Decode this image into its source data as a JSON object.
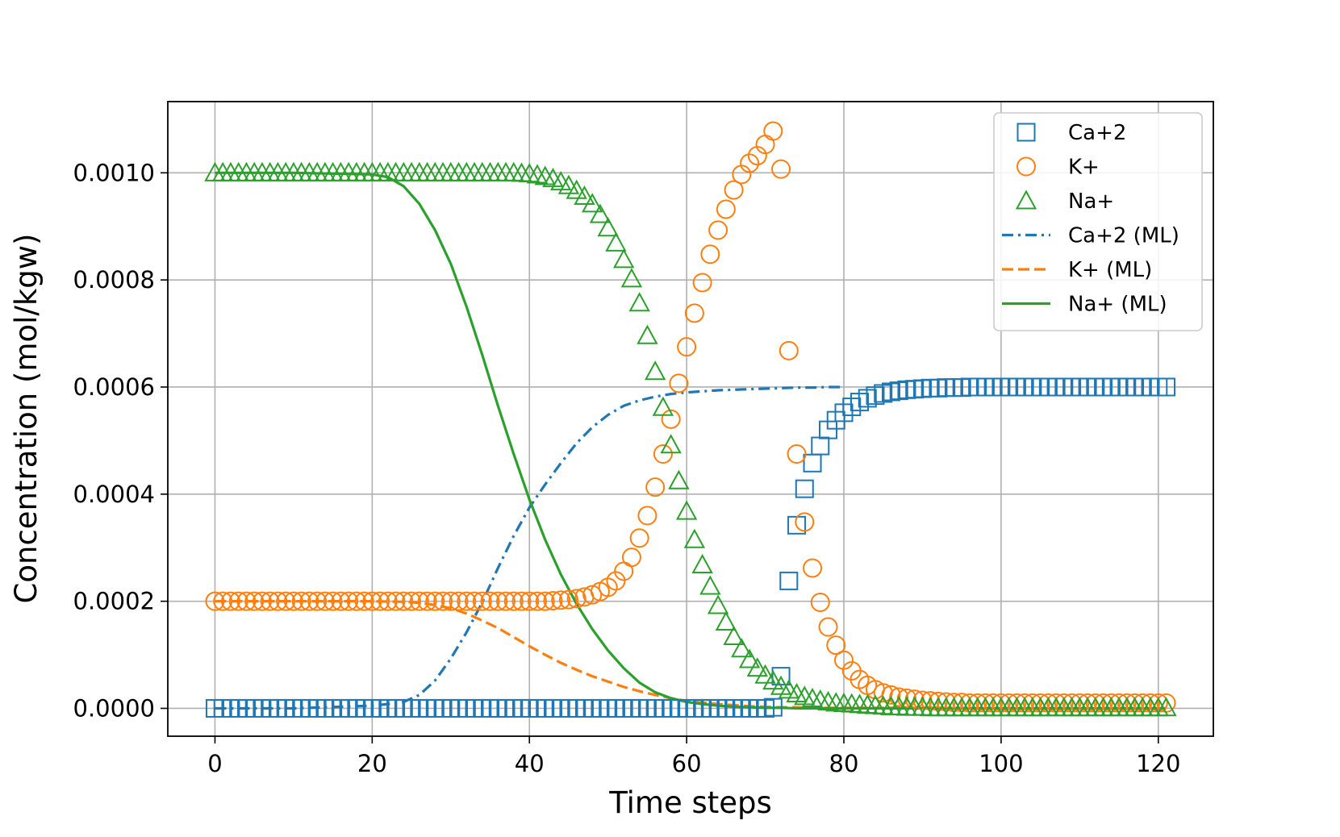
{
  "chart_data": {
    "type": "scatter",
    "xlabel": "Time steps",
    "ylabel": "Concentration (mol/kgw)",
    "xlim": [
      -6,
      127
    ],
    "ylim": [
      -5.2e-05,
      0.001133
    ],
    "xticks": [
      0,
      20,
      40,
      60,
      80,
      100,
      120
    ],
    "xtick_labels": [
      "0",
      "20",
      "40",
      "60",
      "80",
      "100",
      "120"
    ],
    "yticks": [
      0,
      0.0002,
      0.0004,
      0.0006,
      0.0008,
      0.001
    ],
    "ytick_labels": [
      "0.0000",
      "0.0002",
      "0.0004",
      "0.0006",
      "0.0008",
      "0.0010"
    ],
    "grid": true,
    "legend_position": "top-right",
    "series": [
      {
        "name": "Ca+2",
        "style": "markers",
        "marker": "square",
        "color": "#1f77b4",
        "x": [
          0,
          1,
          2,
          3,
          4,
          5,
          6,
          7,
          8,
          9,
          10,
          11,
          12,
          13,
          14,
          15,
          16,
          17,
          18,
          19,
          20,
          21,
          22,
          23,
          24,
          25,
          26,
          27,
          28,
          29,
          30,
          31,
          32,
          33,
          34,
          35,
          36,
          37,
          38,
          39,
          40,
          41,
          42,
          43,
          44,
          45,
          46,
          47,
          48,
          49,
          50,
          51,
          52,
          53,
          54,
          55,
          56,
          57,
          58,
          59,
          60,
          61,
          62,
          63,
          64,
          65,
          66,
          67,
          68,
          69,
          70,
          71,
          72,
          73,
          74,
          75,
          76,
          77,
          78,
          79,
          80,
          81,
          82,
          83,
          84,
          85,
          86,
          87,
          88,
          89,
          90,
          91,
          92,
          93,
          94,
          95,
          96,
          97,
          98,
          99,
          100,
          101,
          102,
          103,
          104,
          105,
          106,
          107,
          108,
          109,
          110,
          111,
          112,
          113,
          114,
          115,
          116,
          117,
          118,
          119,
          120,
          121
        ],
        "y": [
          0,
          0,
          0,
          0,
          0,
          0,
          0,
          0,
          0,
          0,
          0,
          0,
          0,
          0,
          0,
          0,
          0,
          0,
          0,
          0,
          0,
          0,
          0,
          0,
          0,
          0,
          0,
          0,
          0,
          0,
          0,
          0,
          0,
          0,
          0,
          0,
          0,
          0,
          0,
          0,
          0,
          0,
          0,
          0,
          0,
          0,
          0,
          0,
          0,
          0,
          0,
          0,
          0,
          0,
          0,
          0,
          0,
          0,
          0,
          0,
          0,
          0,
          0,
          0,
          0,
          0,
          0,
          0,
          0,
          0,
          0,
          2e-06,
          6e-05,
          0.000238,
          0.000342,
          0.00041,
          0.000458,
          0.00049,
          0.00052,
          0.000538,
          0.000552,
          0.000563,
          0.000572,
          0.000579,
          0.000584,
          0.000588,
          0.000591,
          0.000593,
          0.000595,
          0.000596,
          0.000597,
          0.000598,
          0.000598,
          0.000599,
          0.000599,
          0.000599,
          0.0006,
          0.0006,
          0.0006,
          0.0006,
          0.0006,
          0.0006,
          0.0006,
          0.0006,
          0.0006,
          0.0006,
          0.0006,
          0.0006,
          0.0006,
          0.0006,
          0.0006,
          0.0006,
          0.0006,
          0.0006,
          0.0006,
          0.0006,
          0.0006,
          0.0006,
          0.0006,
          0.0006,
          0.0006,
          0.0006
        ]
      },
      {
        "name": "K+",
        "style": "markers",
        "marker": "circle",
        "color": "#ff7f0e",
        "x": [
          0,
          1,
          2,
          3,
          4,
          5,
          6,
          7,
          8,
          9,
          10,
          11,
          12,
          13,
          14,
          15,
          16,
          17,
          18,
          19,
          20,
          21,
          22,
          23,
          24,
          25,
          26,
          27,
          28,
          29,
          30,
          31,
          32,
          33,
          34,
          35,
          36,
          37,
          38,
          39,
          40,
          41,
          42,
          43,
          44,
          45,
          46,
          47,
          48,
          49,
          50,
          51,
          52,
          53,
          54,
          55,
          56,
          57,
          58,
          59,
          60,
          61,
          62,
          63,
          64,
          65,
          66,
          67,
          68,
          69,
          70,
          71,
          72,
          73,
          74,
          75,
          76,
          77,
          78,
          79,
          80,
          81,
          82,
          83,
          84,
          85,
          86,
          87,
          88,
          89,
          90,
          91,
          92,
          93,
          94,
          95,
          96,
          97,
          98,
          99,
          100,
          101,
          102,
          103,
          104,
          105,
          106,
          107,
          108,
          109,
          110,
          111,
          112,
          113,
          114,
          115,
          116,
          117,
          118,
          119,
          120,
          121
        ],
        "y": [
          0.0002,
          0.0002,
          0.0002,
          0.0002,
          0.0002,
          0.0002,
          0.0002,
          0.0002,
          0.0002,
          0.0002,
          0.0002,
          0.0002,
          0.0002,
          0.0002,
          0.0002,
          0.0002,
          0.0002,
          0.0002,
          0.0002,
          0.0002,
          0.0002,
          0.0002,
          0.0002,
          0.0002,
          0.0002,
          0.0002,
          0.0002,
          0.0002,
          0.0002,
          0.0002,
          0.0002,
          0.0002,
          0.0002,
          0.0002,
          0.0002,
          0.0002,
          0.0002,
          0.0002,
          0.0002,
          0.0002,
          0.0002,
          0.0002,
          0.0002,
          0.000201,
          0.000202,
          0.000203,
          0.000205,
          0.000208,
          0.000212,
          0.000218,
          0.000226,
          0.000238,
          0.000256,
          0.000282,
          0.000318,
          0.00036,
          0.000413,
          0.000475,
          0.00054,
          0.000607,
          0.000675,
          0.000738,
          0.000795,
          0.000848,
          0.000893,
          0.000932,
          0.000968,
          0.000997,
          0.001018,
          0.001032,
          0.001053,
          0.001078,
          0.001007,
          0.000668,
          0.000475,
          0.000348,
          0.000262,
          0.000198,
          0.000152,
          0.000118,
          9e-05,
          7e-05,
          5.4e-05,
          4.3e-05,
          3.5e-05,
          2.9e-05,
          2.5e-05,
          2.1e-05,
          1.9e-05,
          1.7e-05,
          1.5e-05,
          1.4e-05,
          1.3e-05,
          1.2e-05,
          1.1e-05,
          1.1e-05,
          1e-05,
          1e-05,
          1e-05,
          1e-05,
          1e-05,
          1e-05,
          1e-05,
          1e-05,
          1e-05,
          1e-05,
          1e-05,
          1e-05,
          1e-05,
          1e-05,
          1e-05,
          1e-05,
          1e-05,
          1e-05,
          1e-05,
          1e-05,
          1e-05,
          1e-05,
          1e-05,
          1e-05,
          1e-05,
          1e-05
        ]
      },
      {
        "name": "Na+",
        "style": "markers",
        "marker": "triangle",
        "color": "#2ca02c",
        "x": [
          0,
          1,
          2,
          3,
          4,
          5,
          6,
          7,
          8,
          9,
          10,
          11,
          12,
          13,
          14,
          15,
          16,
          17,
          18,
          19,
          20,
          21,
          22,
          23,
          24,
          25,
          26,
          27,
          28,
          29,
          30,
          31,
          32,
          33,
          34,
          35,
          36,
          37,
          38,
          39,
          40,
          41,
          42,
          43,
          44,
          45,
          46,
          47,
          48,
          49,
          50,
          51,
          52,
          53,
          54,
          55,
          56,
          57,
          58,
          59,
          60,
          61,
          62,
          63,
          64,
          65,
          66,
          67,
          68,
          69,
          70,
          71,
          72,
          73,
          74,
          75,
          76,
          77,
          78,
          79,
          80,
          81,
          82,
          83,
          84,
          85,
          86,
          87,
          88,
          89,
          90,
          91,
          92,
          93,
          94,
          95,
          96,
          97,
          98,
          99,
          100,
          101,
          102,
          103,
          104,
          105,
          106,
          107,
          108,
          109,
          110,
          111,
          112,
          113,
          114,
          115,
          116,
          117,
          118,
          119,
          120,
          121
        ],
        "y": [
          0.001,
          0.001,
          0.001,
          0.001,
          0.001,
          0.001,
          0.001,
          0.001,
          0.001,
          0.001,
          0.001,
          0.001,
          0.001,
          0.001,
          0.001,
          0.001,
          0.001,
          0.001,
          0.001,
          0.001,
          0.001,
          0.001,
          0.001,
          0.001,
          0.001,
          0.001,
          0.001,
          0.001,
          0.001,
          0.001,
          0.001,
          0.001,
          0.001,
          0.001,
          0.001,
          0.001,
          0.001,
          0.001,
          0.001,
          0.000999,
          0.000998,
          0.000996,
          0.000993,
          0.000989,
          0.000983,
          0.000976,
          0.000967,
          0.000956,
          0.000942,
          0.000922,
          0.000897,
          0.000869,
          0.000838,
          0.000802,
          0.000757,
          0.000696,
          0.000629,
          0.000562,
          0.000492,
          0.000425,
          0.000368,
          0.000315,
          0.000268,
          0.000228,
          0.000192,
          0.000161,
          0.000134,
          0.000111,
          9.1e-05,
          7.5e-05,
          6.2e-05,
          5.1e-05,
          4.1e-05,
          3.4e-05,
          2.7e-05,
          2.2e-05,
          1.8e-05,
          1.5e-05,
          1.2e-05,
          1e-05,
          9e-06,
          8e-06,
          7e-06,
          6e-06,
          5e-06,
          4e-06,
          3e-06,
          3e-06,
          2e-06,
          2e-06,
          2e-06,
          1e-06,
          1e-06,
          1e-06,
          1e-06,
          1e-06,
          1e-06,
          1e-06,
          1e-06,
          1e-06,
          1e-06,
          1e-06,
          1e-06,
          1e-06,
          1e-06,
          1e-06,
          1e-06,
          1e-06,
          1e-06,
          1e-06,
          1e-06,
          1e-06,
          1e-06,
          1e-06,
          1e-06,
          1e-06,
          1e-06,
          1e-06,
          1e-06,
          1e-06,
          1e-06,
          1e-06
        ]
      },
      {
        "name": "Ca+2 (ML)",
        "style": "line",
        "dash": "dashdot",
        "color": "#1f77b4",
        "x": [
          0,
          10,
          20,
          22,
          24,
          26,
          28,
          30,
          32,
          34,
          36,
          38,
          40,
          42,
          44,
          46,
          48,
          50,
          52,
          54,
          56,
          58,
          60,
          62,
          64,
          66,
          68,
          70,
          72,
          74,
          76,
          78,
          80
        ],
        "y": [
          0,
          0,
          5e-06,
          8e-06,
          1.2e-05,
          2.5e-05,
          5.2e-05,
          9.3e-05,
          0.000142,
          0.000198,
          0.000262,
          0.000322,
          0.000375,
          0.000418,
          0.000458,
          0.000495,
          0.000525,
          0.000548,
          0.000565,
          0.000575,
          0.000582,
          0.000587,
          0.00059,
          0.000592,
          0.000594,
          0.000595,
          0.000596,
          0.000597,
          0.000598,
          0.000599,
          0.000599,
          0.0006,
          0.0006
        ]
      },
      {
        "name": "K+ (ML)",
        "style": "line",
        "dash": "dashed",
        "color": "#ff7f0e",
        "x": [
          0,
          10,
          20,
          24,
          26,
          28,
          30,
          32,
          34,
          36,
          38,
          40,
          42,
          44,
          46,
          48,
          50,
          52,
          54,
          56,
          58,
          60,
          62,
          64,
          66,
          68,
          70,
          72,
          74,
          76,
          78,
          80,
          90,
          100,
          110,
          121
        ],
        "y": [
          0.0002,
          0.0002,
          0.0002,
          0.000199,
          0.000197,
          0.000193,
          0.000187,
          0.000177,
          0.000164,
          0.00015,
          0.000133,
          0.000116,
          0.0001,
          8.5e-05,
          7.2e-05,
          6e-05,
          5e-05,
          4e-05,
          3.2e-05,
          2.5e-05,
          1.9e-05,
          1.4e-05,
          1.1e-05,
          8e-06,
          6e-06,
          4e-06,
          3e-06,
          2e-06,
          2e-06,
          1e-06,
          1e-06,
          1e-06,
          1e-06,
          0,
          0,
          0
        ]
      },
      {
        "name": "Na+ (ML)",
        "style": "line",
        "dash": "solid",
        "color": "#2ca02c",
        "x": [
          0,
          10,
          20,
          22,
          24,
          26,
          28,
          30,
          32,
          34,
          36,
          38,
          40,
          42,
          44,
          46,
          48,
          50,
          52,
          54,
          56,
          58,
          60,
          62,
          64,
          66,
          68,
          70,
          72,
          74,
          76,
          78,
          80,
          90,
          100,
          110,
          121
        ],
        "y": [
          0.001,
          0.001,
          0.000997,
          0.000992,
          0.000975,
          0.000942,
          0.000893,
          0.00083,
          0.00075,
          0.00066,
          0.000565,
          0.000475,
          0.00039,
          0.000315,
          0.00025,
          0.000195,
          0.000148,
          0.000108,
          7.5e-05,
          4.8e-05,
          3e-05,
          1.9e-05,
          1.2e-05,
          8e-06,
          5e-06,
          3e-06,
          2e-06,
          1e-06,
          1e-06,
          0,
          0,
          0,
          0,
          0,
          0,
          0,
          0
        ]
      }
    ]
  }
}
